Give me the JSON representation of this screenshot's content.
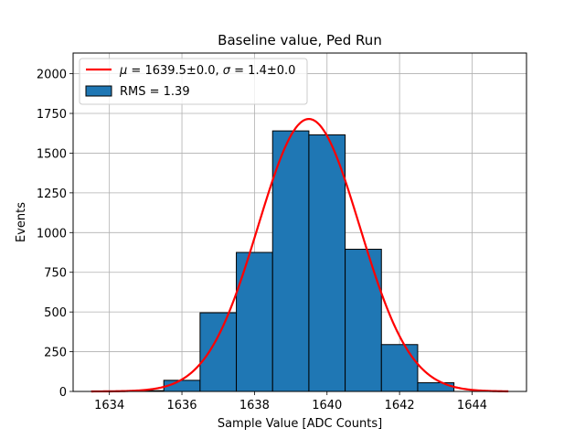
{
  "chart_data": {
    "type": "bar",
    "title": "Baseline value, Ped Run",
    "xlabel": "Sample Value [ADC Counts]",
    "ylabel": "Events",
    "xlim": [
      1633,
      1645.5
    ],
    "ylim": [
      0,
      2130
    ],
    "xticks": [
      1634,
      1636,
      1638,
      1640,
      1642,
      1644
    ],
    "xtick_labels": [
      "1634",
      "1636",
      "1638",
      "1640",
      "1642",
      "1644"
    ],
    "yticks": [
      0,
      250,
      500,
      750,
      1000,
      1250,
      1500,
      1750,
      2000
    ],
    "ytick_labels": [
      "0",
      "250",
      "500",
      "750",
      "1000",
      "1250",
      "1500",
      "1750",
      "2000"
    ],
    "grid": true,
    "histogram": {
      "name": "RMS = 1.39",
      "color": "#1f77b4",
      "edge_color": "#000000",
      "bin_edges": [
        1633.5,
        1634.5,
        1635.5,
        1636.5,
        1637.5,
        1638.5,
        1639.5,
        1640.5,
        1641.5,
        1642.5,
        1643.5
      ],
      "counts": [
        1,
        5,
        70,
        495,
        875,
        1640,
        1615,
        895,
        295,
        55
      ]
    },
    "fit": {
      "name": "μ = 1639.5±0.0, σ = 1.4±0.0",
      "label_mu": "μ",
      "label_mu_text": " = 1639.5±0.0, ",
      "label_sigma": "σ",
      "label_sigma_text": " = 1.4±0.0",
      "color": "#ff0000",
      "mu": 1639.5,
      "sigma": 1.4,
      "amplitude": 1715,
      "x_range": [
        1633.5,
        1645
      ]
    },
    "legend_position": "upper-left"
  }
}
